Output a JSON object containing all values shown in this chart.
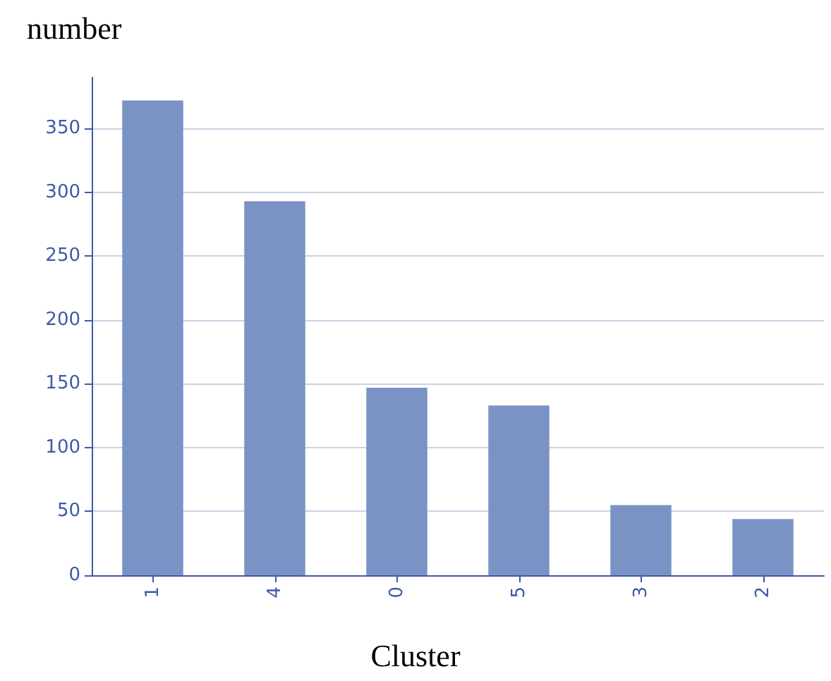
{
  "chart_data": {
    "type": "bar",
    "xlabel": "Cluster",
    "ylabel": "number",
    "categories": [
      "1",
      "4",
      "0",
      "5",
      "3",
      "2"
    ],
    "values": [
      372,
      293,
      147,
      133,
      55,
      44
    ],
    "color": "#7a93c4",
    "ylim": [
      0,
      390
    ],
    "yticks": [
      0,
      50,
      100,
      150,
      200,
      250,
      300,
      350
    ],
    "grid": "y"
  }
}
